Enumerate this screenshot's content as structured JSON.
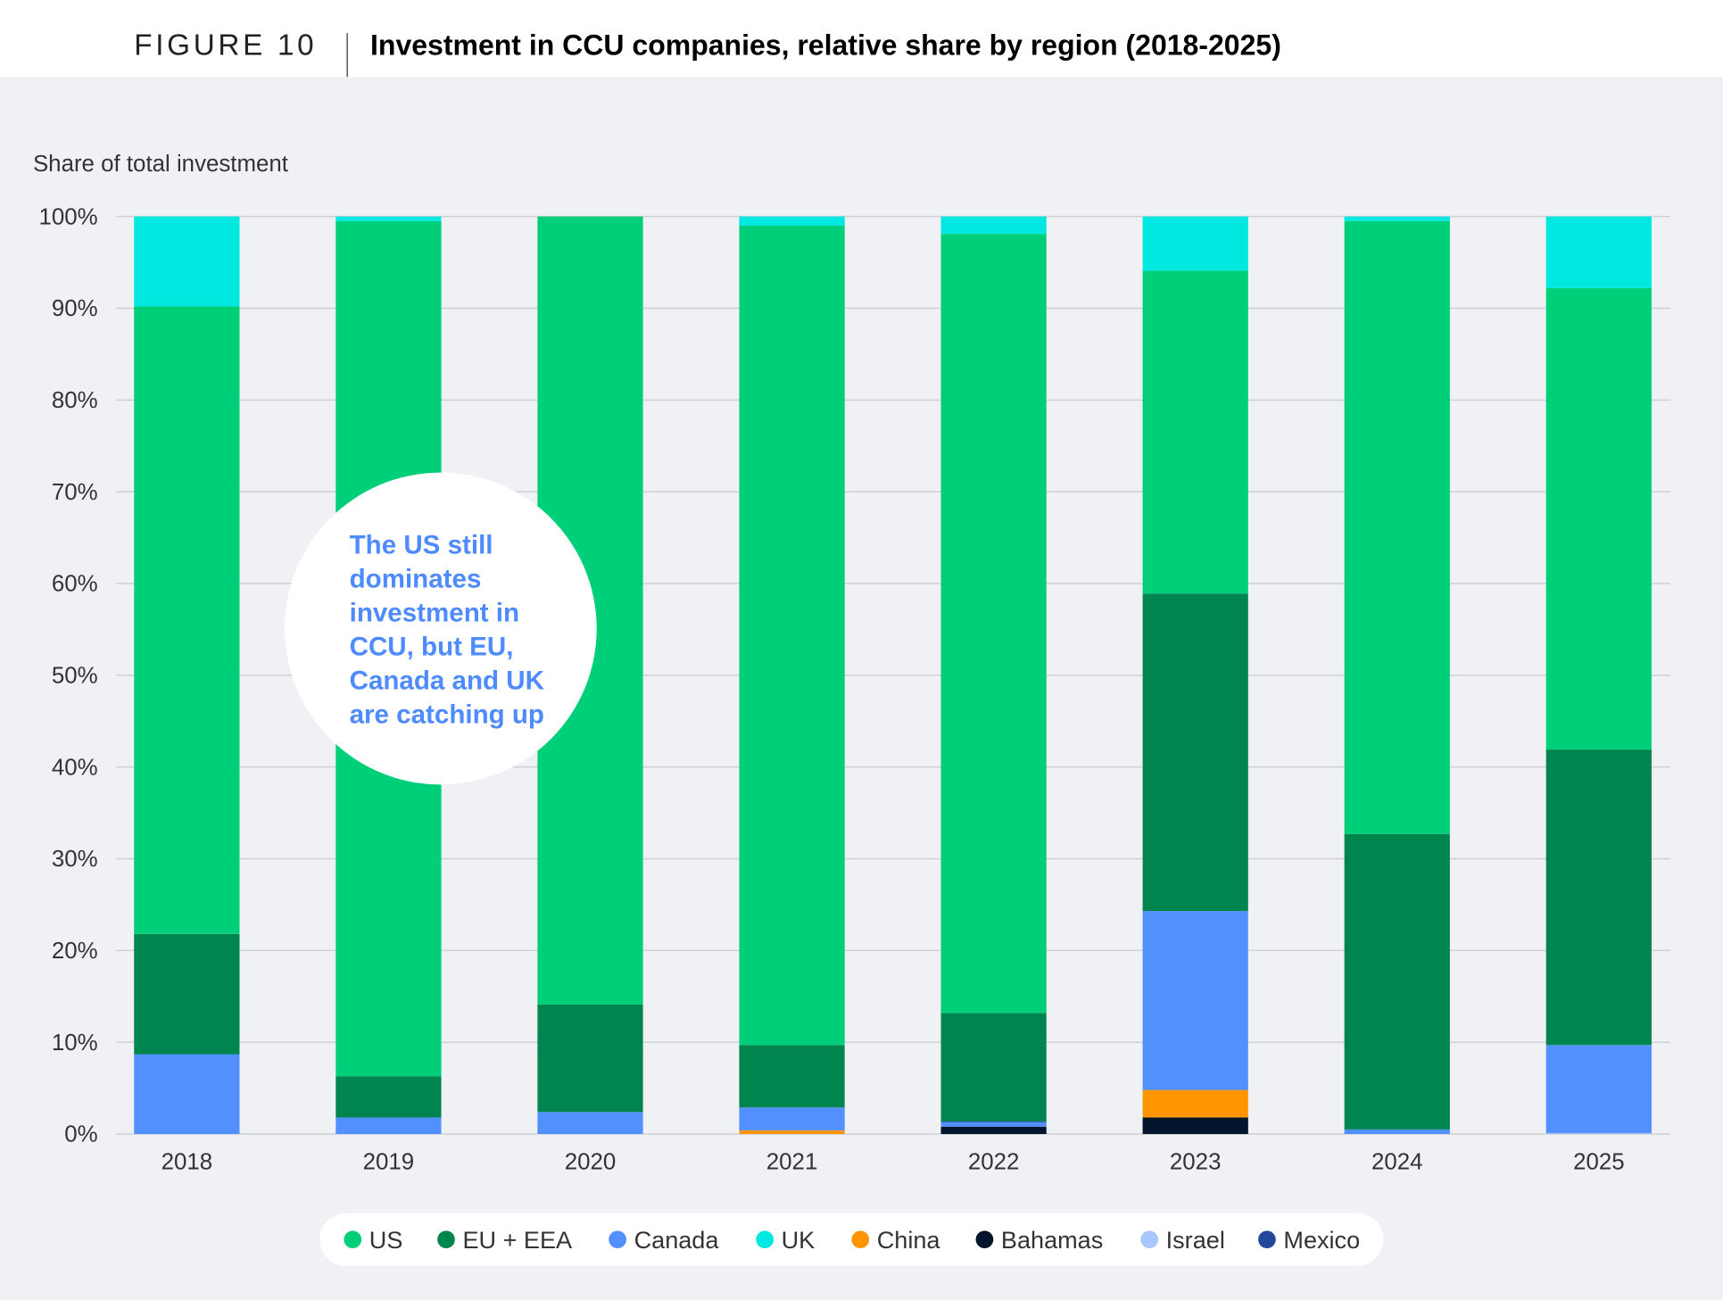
{
  "header": {
    "figure_label": "FIGURE 10",
    "title": "Investment in CCU companies, relative share by region (2018-2025)"
  },
  "annotation": {
    "lines": [
      "The US still",
      "dominates",
      "investment in",
      "CCU, but EU,",
      "Canada and UK",
      "are catching up"
    ]
  },
  "chart_data": {
    "type": "bar",
    "stacked": true,
    "title": "Investment in CCU companies, relative share by region (2018-2025)",
    "ylabel": "Share of total investment",
    "xlabel": "",
    "ylim": [
      0,
      100
    ],
    "yticks": [
      "0%",
      "10%",
      "20%",
      "30%",
      "40%",
      "50%",
      "60%",
      "70%",
      "80%",
      "90%",
      "100%"
    ],
    "grid": true,
    "legend_placement": "bottom",
    "categories": [
      "2018",
      "2019",
      "2020",
      "2021",
      "2022",
      "2023",
      "2024",
      "2025"
    ],
    "series": [
      {
        "name": "Bahamas",
        "color": "#00142b",
        "values": [
          0,
          0,
          0,
          0,
          0.8,
          1.8,
          0,
          0
        ]
      },
      {
        "name": "China",
        "color": "#ff9500",
        "values": [
          0,
          0,
          0,
          0.4,
          0,
          3.0,
          0,
          0
        ]
      },
      {
        "name": "Israel",
        "color": "#a8c6ff",
        "values": [
          0,
          0,
          0,
          0,
          0,
          0,
          0,
          0.1
        ]
      },
      {
        "name": "Canada",
        "color": "#5290ff",
        "values": [
          8.7,
          1.8,
          2.4,
          2.5,
          0.5,
          19.5,
          0.5,
          9.6
        ]
      },
      {
        "name": "Mexico",
        "color": "#23489a",
        "values": [
          0,
          0,
          0,
          0,
          0.1,
          0,
          0,
          0
        ]
      },
      {
        "name": "EU + EEA",
        "color": "#00854f",
        "values": [
          13.1,
          4.5,
          11.7,
          6.8,
          11.8,
          34.6,
          32.2,
          32.2
        ]
      },
      {
        "name": "US",
        "color": "#00cf7a",
        "values": [
          68.4,
          93.2,
          85.9,
          89.3,
          84.9,
          35.2,
          66.8,
          50.3
        ]
      },
      {
        "name": "UK",
        "color": "#00e8e0",
        "values": [
          9.8,
          0.5,
          0,
          1.0,
          1.9,
          5.9,
          0.5,
          7.8
        ]
      }
    ],
    "legend": [
      {
        "name": "US",
        "color": "#00cf7a"
      },
      {
        "name": "EU + EEA",
        "color": "#00854f"
      },
      {
        "name": "Canada",
        "color": "#5290ff"
      },
      {
        "name": "UK",
        "color": "#00e8e0"
      },
      {
        "name": "China",
        "color": "#ff9500"
      },
      {
        "name": "Bahamas",
        "color": "#00142b"
      },
      {
        "name": "Israel",
        "color": "#a8c6ff"
      },
      {
        "name": "Mexico",
        "color": "#23489a"
      }
    ]
  }
}
